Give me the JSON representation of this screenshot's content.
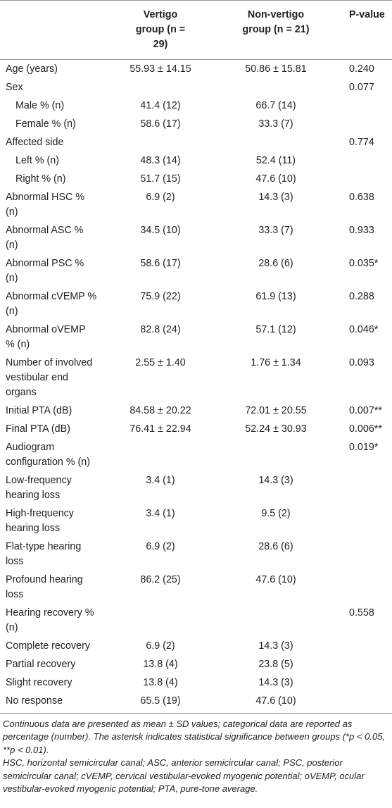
{
  "table": {
    "header": [
      "Vertigo group (n = 29)",
      "Non-vertigo group (n = 21)",
      "P-value"
    ],
    "rows": [
      [
        "Age (years)",
        "55.93 ± 14.15",
        "50.86 ± 15.81",
        "0.240"
      ],
      [
        "Sex",
        null,
        null,
        "0.077"
      ],
      [
        "Male % (n)",
        "41.4 (12)",
        "66.7 (14)",
        null
      ],
      [
        "Female % (n)",
        "58.6 (17)",
        "33.3 (7)",
        null
      ],
      [
        "Affected side",
        null,
        null,
        "0.774"
      ],
      [
        "Left % (n)",
        "48.3 (14)",
        "52.4 (11)",
        null
      ],
      [
        "Right % (n)",
        "51.7 (15)",
        "47.6 (10)",
        null
      ],
      [
        "Abnormal HSC % (n)",
        "6.9 (2)",
        "14.3 (3)",
        "0.638"
      ],
      [
        "Abnormal ASC % (n)",
        "34.5 (10)",
        "33.3 (7)",
        "0.933"
      ],
      [
        "Abnormal PSC % (n)",
        "58.6 (17)",
        "28.6 (6)",
        "0.035*"
      ],
      [
        "Abnormal cVEMP % (n)",
        "75.9 (22)",
        "61.9 (13)",
        "0.288"
      ],
      [
        "Abnormal oVEMP % (n)",
        "82.8 (24)",
        "57.1 (12)",
        "0.046*"
      ],
      [
        "Number of involved vestibular end organs",
        "2.55 ± 1.40",
        "1.76 ± 1.34",
        "0.093"
      ],
      [
        "Initial PTA (dB)",
        "84.58 ± 20.22",
        "72.01 ± 20.55",
        "0.007**"
      ],
      [
        "Final PTA (dB)",
        "76.41 ± 22.94",
        "52.24 ± 30.93",
        "0.006**"
      ],
      [
        "Audiogram configuration % (n)",
        null,
        null,
        "0.019*"
      ],
      [
        "Low-frequency hearing loss",
        "3.4 (1)",
        "14.3 (3)",
        null
      ],
      [
        "High-frequency hearing loss",
        "3.4 (1)",
        "9.5 (2)",
        null
      ],
      [
        "Flat-type hearing loss",
        "6.9 (2)",
        "28.6 (6)",
        null
      ],
      [
        "Profound hearing loss",
        "86.2 (25)",
        "47.6 (10)",
        null
      ],
      [
        "Hearing recovery % (n)",
        null,
        null,
        "0.558"
      ],
      [
        "Complete recovery",
        "6.9 (2)",
        "14.3 (3)",
        null
      ],
      [
        "Partial recovery",
        "13.8 (4)",
        "23.8 (5)",
        null
      ],
      [
        "Slight recovery",
        "13.8 (4)",
        "14.3 (3)",
        null
      ],
      [
        "No response",
        "65.5 (19)",
        "47.6 (10)",
        null
      ]
    ],
    "footnotes": [
      "Continuous data are presented as mean ± SD values; categorical data are reported as percentage (number). The asterisk indicates statistical significance between groups (*p < 0.05, **p < 0.01).",
      "HSC, horizontal semicircular canal; ASC, anterior semicircular canal; PSC, posterior semicircular canal; cVEMP, cervical vestibular-evoked myogenic potential; oVEMP, ocular vestibular-evoked myogenic potential; PTA, pure-tone average."
    ]
  }
}
